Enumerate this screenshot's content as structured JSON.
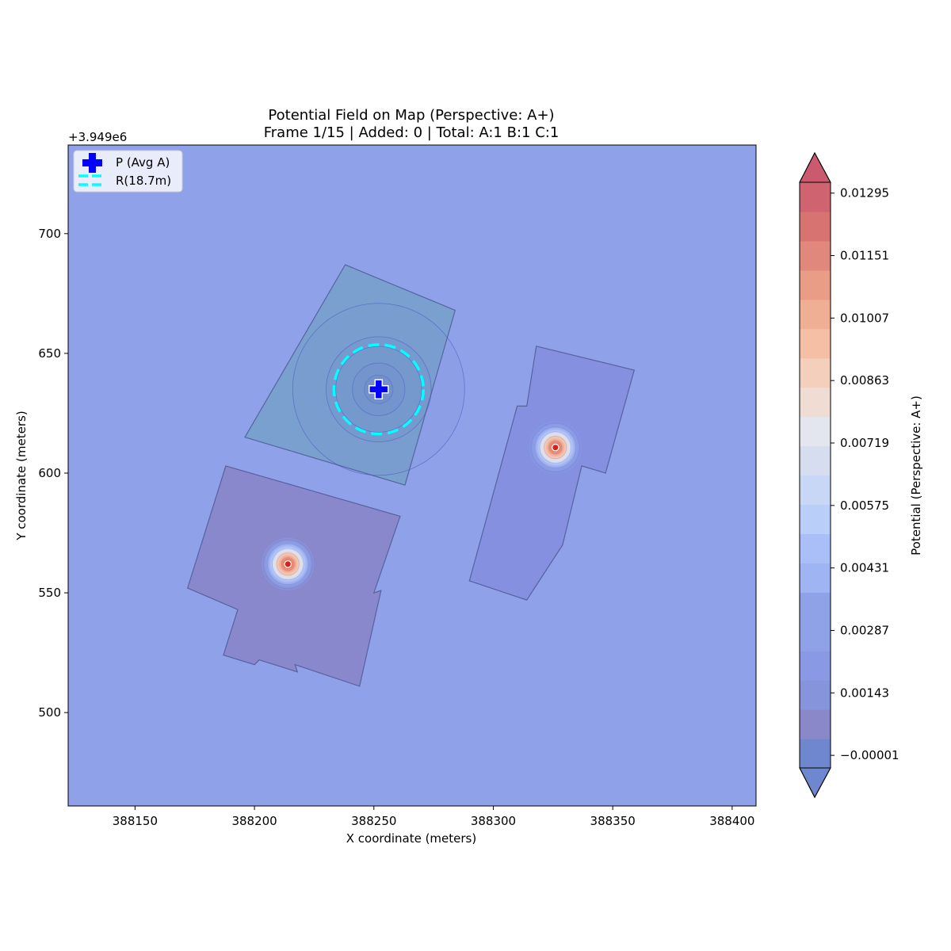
{
  "chart_data": {
    "type": "contour-map",
    "title_line1": "Potential Field on Map (Perspective: A+)",
    "title_line2": "Frame 1/15 | Added: 0 | Total: A:1 B:1 C:1",
    "xlabel": "X coordinate (meters)",
    "ylabel": "Y coordinate (meters)",
    "y_offset_label": "+3.949e6",
    "xlim": [
      388122,
      388410
    ],
    "ylim": [
      461,
      737
    ],
    "x_ticks": [
      388150,
      388200,
      388250,
      388300,
      388350,
      388400
    ],
    "x_tick_labels": [
      "388150",
      "388200",
      "388250",
      "388300",
      "388350",
      "388400"
    ],
    "y_ticks": [
      500,
      550,
      600,
      650,
      700
    ],
    "y_tick_labels": [
      "500",
      "550",
      "600",
      "650",
      "700"
    ],
    "background_color": "#8fa1e8",
    "buildings": [
      {
        "name": "building-top",
        "fill": "#7aa0d0",
        "points": [
          [
            388238,
            687
          ],
          [
            388284,
            668
          ],
          [
            388263,
            595
          ],
          [
            388196,
            615
          ]
        ]
      },
      {
        "name": "building-bottom-left",
        "fill": "#8a88cc",
        "points": [
          [
            388188,
            603
          ],
          [
            388261,
            582
          ],
          [
            388250,
            550
          ],
          [
            388253,
            551
          ],
          [
            388244,
            511
          ],
          [
            388217,
            520
          ],
          [
            388218,
            517
          ],
          [
            388202,
            522
          ],
          [
            388200,
            520
          ],
          [
            388187,
            524
          ],
          [
            388193,
            543
          ],
          [
            388172,
            552
          ]
        ]
      },
      {
        "name": "building-right",
        "fill": "#8590e0",
        "points": [
          [
            388318,
            653
          ],
          [
            388359,
            643
          ],
          [
            388347,
            600
          ],
          [
            388337,
            603
          ],
          [
            388329,
            570
          ],
          [
            388314,
            547
          ],
          [
            388290,
            555
          ],
          [
            388310,
            628
          ],
          [
            388314,
            628
          ]
        ]
      }
    ],
    "agents": [
      {
        "name": "agent-B",
        "x": 388326,
        "y": 610.7
      },
      {
        "name": "agent-C",
        "x": 388214,
        "y": 562
      }
    ],
    "avg_point": {
      "label": "P (Avg A)",
      "x": 388252,
      "y": 635,
      "color": "#0000ff"
    },
    "radius": {
      "label": "R(18.7m)",
      "r": 18.7,
      "color": "#00ffff"
    },
    "field_rings": [
      6,
      11,
      18,
      22,
      36
    ],
    "colorbar": {
      "label": "Potential (Perspective: A+)",
      "tick_values": [
        -1e-05,
        0.00143,
        0.00287,
        0.00431,
        0.00575,
        0.00719,
        0.00863,
        0.01007,
        0.01151,
        0.01295
      ],
      "tick_labels": [
        "−0.00001",
        "0.00143",
        "0.00287",
        "0.00431",
        "0.00575",
        "0.00719",
        "0.00863",
        "0.01007",
        "0.01151",
        "0.01295"
      ],
      "range": [
        -0.0003,
        0.0132
      ],
      "colors": [
        "#6e87cf",
        "#8a88c8",
        "#8594db",
        "#8a99e4",
        "#8fa2e8",
        "#8fa2e8",
        "#9fb4f3",
        "#aabff8",
        "#b9cef9",
        "#c7d7f5",
        "#d5ddef",
        "#e3e6ee",
        "#efdcd3",
        "#f4cfbc",
        "#f5bfa5",
        "#efaf95",
        "#e99c86",
        "#e0887b",
        "#d77472",
        "#cf6370"
      ],
      "low_extend_color": "#6e87cf",
      "high_extend_color": "#cc5a6e"
    }
  }
}
